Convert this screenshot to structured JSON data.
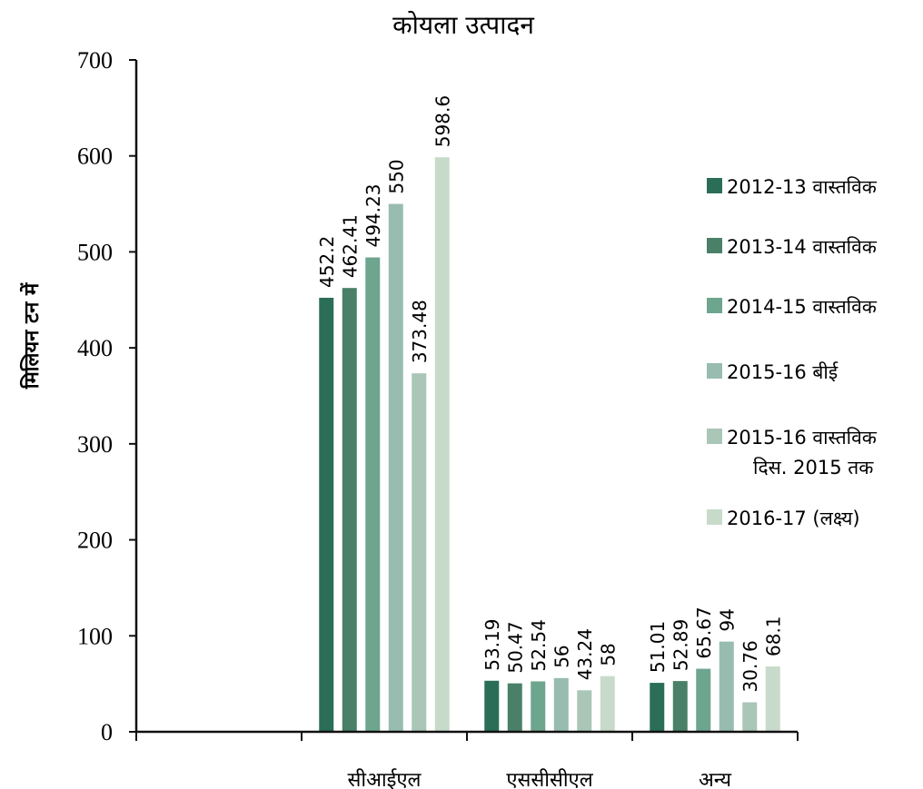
{
  "chart_data": {
    "type": "bar",
    "title": "कोयला उत्पादन",
    "ylabel": "मिलियन टन में",
    "xlabel": "",
    "ylim": [
      0,
      700
    ],
    "yticks": [
      "0",
      "100",
      "200",
      "300",
      "400",
      "500",
      "600",
      "700"
    ],
    "categories": [
      "",
      "सीआईएल",
      "एससीसीएल",
      "अन्य"
    ],
    "series": [
      {
        "name": "2012-13 वास्तविक",
        "color": "#2b6e58",
        "values": [
          null,
          452.2,
          53.19,
          51.01
        ],
        "labels": [
          "",
          "452.2",
          "53.19",
          "51.01"
        ]
      },
      {
        "name": "2013-14 वास्तविक",
        "color": "#4a8068",
        "values": [
          null,
          462.41,
          50.47,
          52.89
        ],
        "labels": [
          "",
          "462.41",
          "50.47",
          "52.89"
        ]
      },
      {
        "name": "2014-15 वास्तविक",
        "color": "#6da58e",
        "values": [
          null,
          494.23,
          52.54,
          65.67
        ],
        "labels": [
          "",
          "494.23",
          "52.54",
          "65.67"
        ]
      },
      {
        "name": "2015-16 बीई",
        "color": "#98bcb0",
        "values": [
          null,
          550,
          56,
          94
        ],
        "labels": [
          "",
          "550",
          "56",
          "94"
        ]
      },
      {
        "name": "2015-16 वास्तविक",
        "name_line2": "दिस. 2015 तक",
        "color": "#a9c6b6",
        "values": [
          null,
          373.48,
          43.24,
          30.76
        ],
        "labels": [
          "",
          "373.48",
          "43.24",
          "30.76"
        ]
      },
      {
        "name": "2016-17 (लक्ष्य)",
        "color": "#c8dbcb",
        "values": [
          null,
          598.6,
          58,
          68.1
        ],
        "labels": [
          "",
          "598.6",
          "58",
          "68.1"
        ]
      }
    ],
    "legend_position": "right",
    "grid": false
  }
}
